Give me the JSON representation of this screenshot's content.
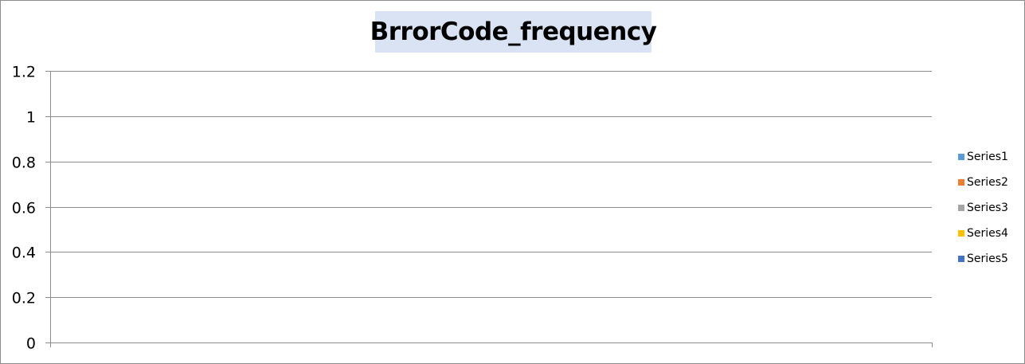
{
  "chart_data": {
    "type": "bar",
    "title": "BrrorCode_frequency",
    "xlabel": "",
    "ylabel": "",
    "ylim": [
      0,
      1.2
    ],
    "yticks": [
      "1.2",
      "1",
      "0.8",
      "0.6",
      "0.4",
      "0.2",
      "0"
    ],
    "ytick_values": [
      1.2,
      1,
      0.8,
      0.6,
      0.4,
      0.2,
      0
    ],
    "grid": true,
    "legend_position": "right",
    "categories": [],
    "series": [
      {
        "name": "Series1",
        "color": "#5b9bd5",
        "values": []
      },
      {
        "name": "Series2",
        "color": "#ed7d31",
        "values": []
      },
      {
        "name": "Series3",
        "color": "#a5a5a5",
        "values": []
      },
      {
        "name": "Series4",
        "color": "#ffc000",
        "values": []
      },
      {
        "name": "Series5",
        "color": "#4472c4",
        "values": []
      }
    ]
  }
}
